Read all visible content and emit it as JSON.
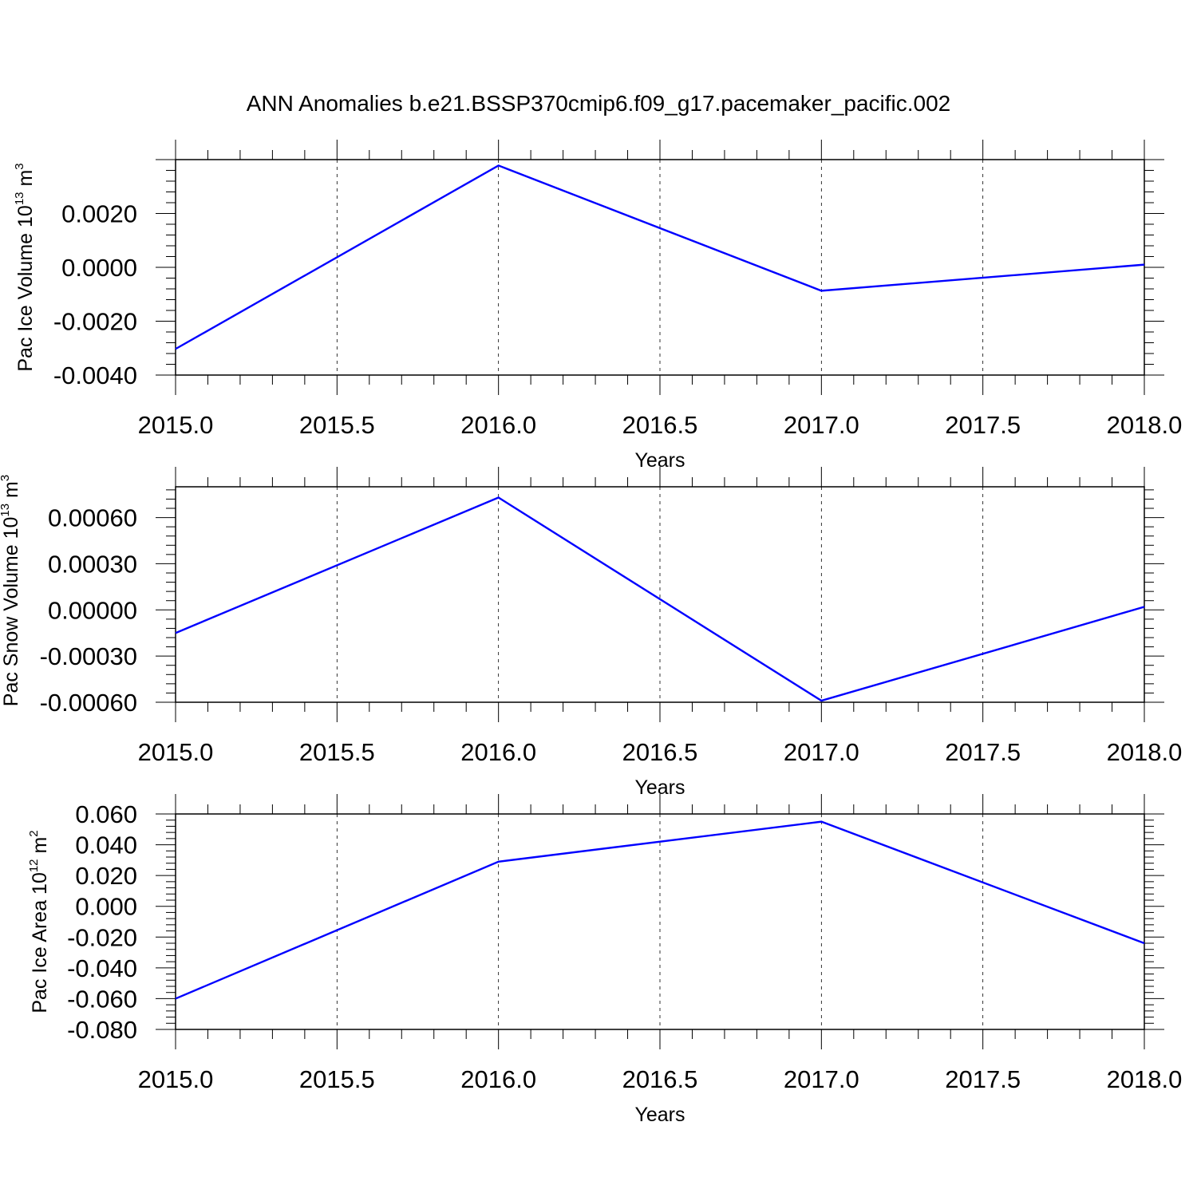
{
  "title": "ANN Anomalies b.e21.BSSP370cmip6.f09_g17.pacemaker_pacific.002",
  "chart_data": [
    {
      "type": "line",
      "ylabel": "Pac Ice Volume 10",
      "ylabel_exp": "13",
      "ylabel_unit": " m",
      "ylabel_unit_exp": "3",
      "xlabel": "Years",
      "xlim": [
        2015.0,
        2018.0
      ],
      "ylim": [
        -0.004,
        0.004
      ],
      "xticks": [
        2015.0,
        2015.5,
        2016.0,
        2016.5,
        2017.0,
        2017.5,
        2018.0
      ],
      "xtick_labels": [
        "2015.0",
        "2015.5",
        "2016.0",
        "2016.5",
        "2017.0",
        "2017.5",
        "2018.0"
      ],
      "yticks": [
        -0.004,
        -0.002,
        0.0,
        0.002
      ],
      "ytick_labels": [
        "-0.0040",
        "-0.0020",
        "0.0000",
        "0.0020"
      ],
      "grid": "vertical dashed",
      "series": [
        {
          "color": "#0000ff",
          "x": [
            2015,
            2016,
            2017,
            2018
          ],
          "y": [
            -0.00303,
            0.00378,
            -0.00087,
            0.0001
          ]
        }
      ]
    },
    {
      "type": "line",
      "ylabel": "Pac Snow Volume 10",
      "ylabel_exp": "13",
      "ylabel_unit": " m",
      "ylabel_unit_exp": "3",
      "xlabel": "Years",
      "xlim": [
        2015.0,
        2018.0
      ],
      "ylim": [
        -0.0006,
        0.0008
      ],
      "xticks": [
        2015.0,
        2015.5,
        2016.0,
        2016.5,
        2017.0,
        2017.5,
        2018.0
      ],
      "xtick_labels": [
        "2015.0",
        "2015.5",
        "2016.0",
        "2016.5",
        "2017.0",
        "2017.5",
        "2018.0"
      ],
      "yticks": [
        -0.0006,
        -0.0003,
        0.0,
        0.0003,
        0.0006
      ],
      "ytick_labels": [
        "-0.00060",
        "-0.00030",
        "0.00000",
        "0.00030",
        "0.00060"
      ],
      "grid": "vertical dashed",
      "series": [
        {
          "color": "#0000ff",
          "x": [
            2015,
            2016,
            2017,
            2018
          ],
          "y": [
            -0.00015,
            0.00073,
            -0.00059,
            2e-05
          ]
        }
      ]
    },
    {
      "type": "line",
      "ylabel": "Pac Ice Area 10",
      "ylabel_exp": "12",
      "ylabel_unit": " m",
      "ylabel_unit_exp": "2",
      "xlabel": "Years",
      "xlim": [
        2015.0,
        2018.0
      ],
      "ylim": [
        -0.08,
        0.06
      ],
      "xticks": [
        2015.0,
        2015.5,
        2016.0,
        2016.5,
        2017.0,
        2017.5,
        2018.0
      ],
      "xtick_labels": [
        "2015.0",
        "2015.5",
        "2016.0",
        "2016.5",
        "2017.0",
        "2017.5",
        "2018.0"
      ],
      "yticks": [
        -0.08,
        -0.06,
        -0.04,
        -0.02,
        0.0,
        0.02,
        0.04,
        0.06
      ],
      "ytick_labels": [
        "-0.080",
        "-0.060",
        "-0.040",
        "-0.020",
        "0.000",
        "0.020",
        "0.040",
        "0.060"
      ],
      "grid": "vertical dashed",
      "series": [
        {
          "color": "#0000ff",
          "x": [
            2015,
            2016,
            2017,
            2018
          ],
          "y": [
            -0.06,
            0.029,
            0.055,
            -0.024
          ]
        }
      ]
    }
  ]
}
